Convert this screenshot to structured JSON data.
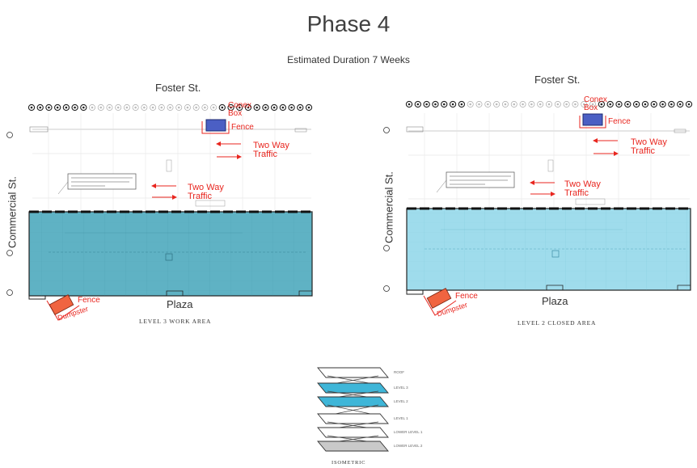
{
  "title": "Phase 4",
  "subtitle": "Estimated Duration 7 Weeks",
  "colors": {
    "work_area": "#5fb2c4",
    "closed_area": "#9fdcec",
    "conex": "#4b5fc4",
    "dumpster": "#f06440",
    "annotation_red": "#e8261f"
  },
  "left_plan": {
    "street_top": "Foster St.",
    "street_side": "Commercial St.",
    "bottom_label": "Plaza",
    "caption": "LEVEL 3 WORK AREA",
    "conex_label": "Conex Box",
    "fence_top": "Fence",
    "fence_bottom": "Fence",
    "dumpster_label": "Dumpster",
    "traffic_upper": "Two Way Traffic",
    "traffic_lower": "Two Way Traffic"
  },
  "right_plan": {
    "street_top": "Foster St.",
    "street_side": "Commercial St.",
    "bottom_label": "Plaza",
    "caption": "LEVEL 2 CLOSED AREA",
    "conex_label": "Conex Box",
    "fence_top": "Fence",
    "fence_bottom": "Fence",
    "dumpster_label": "Dumpster",
    "traffic_upper": "Two Way Traffic",
    "traffic_lower": "Two Way Traffic"
  },
  "isometric": {
    "caption": "ISOMETRIC",
    "levels": [
      "ROOF",
      "LEVEL 3",
      "LEVEL 2",
      "LEVEL 1",
      "LOWER LEVEL 1",
      "LOWER LEVEL 2"
    ],
    "highlighted": [
      "LEVEL 3",
      "LEVEL 2"
    ]
  }
}
